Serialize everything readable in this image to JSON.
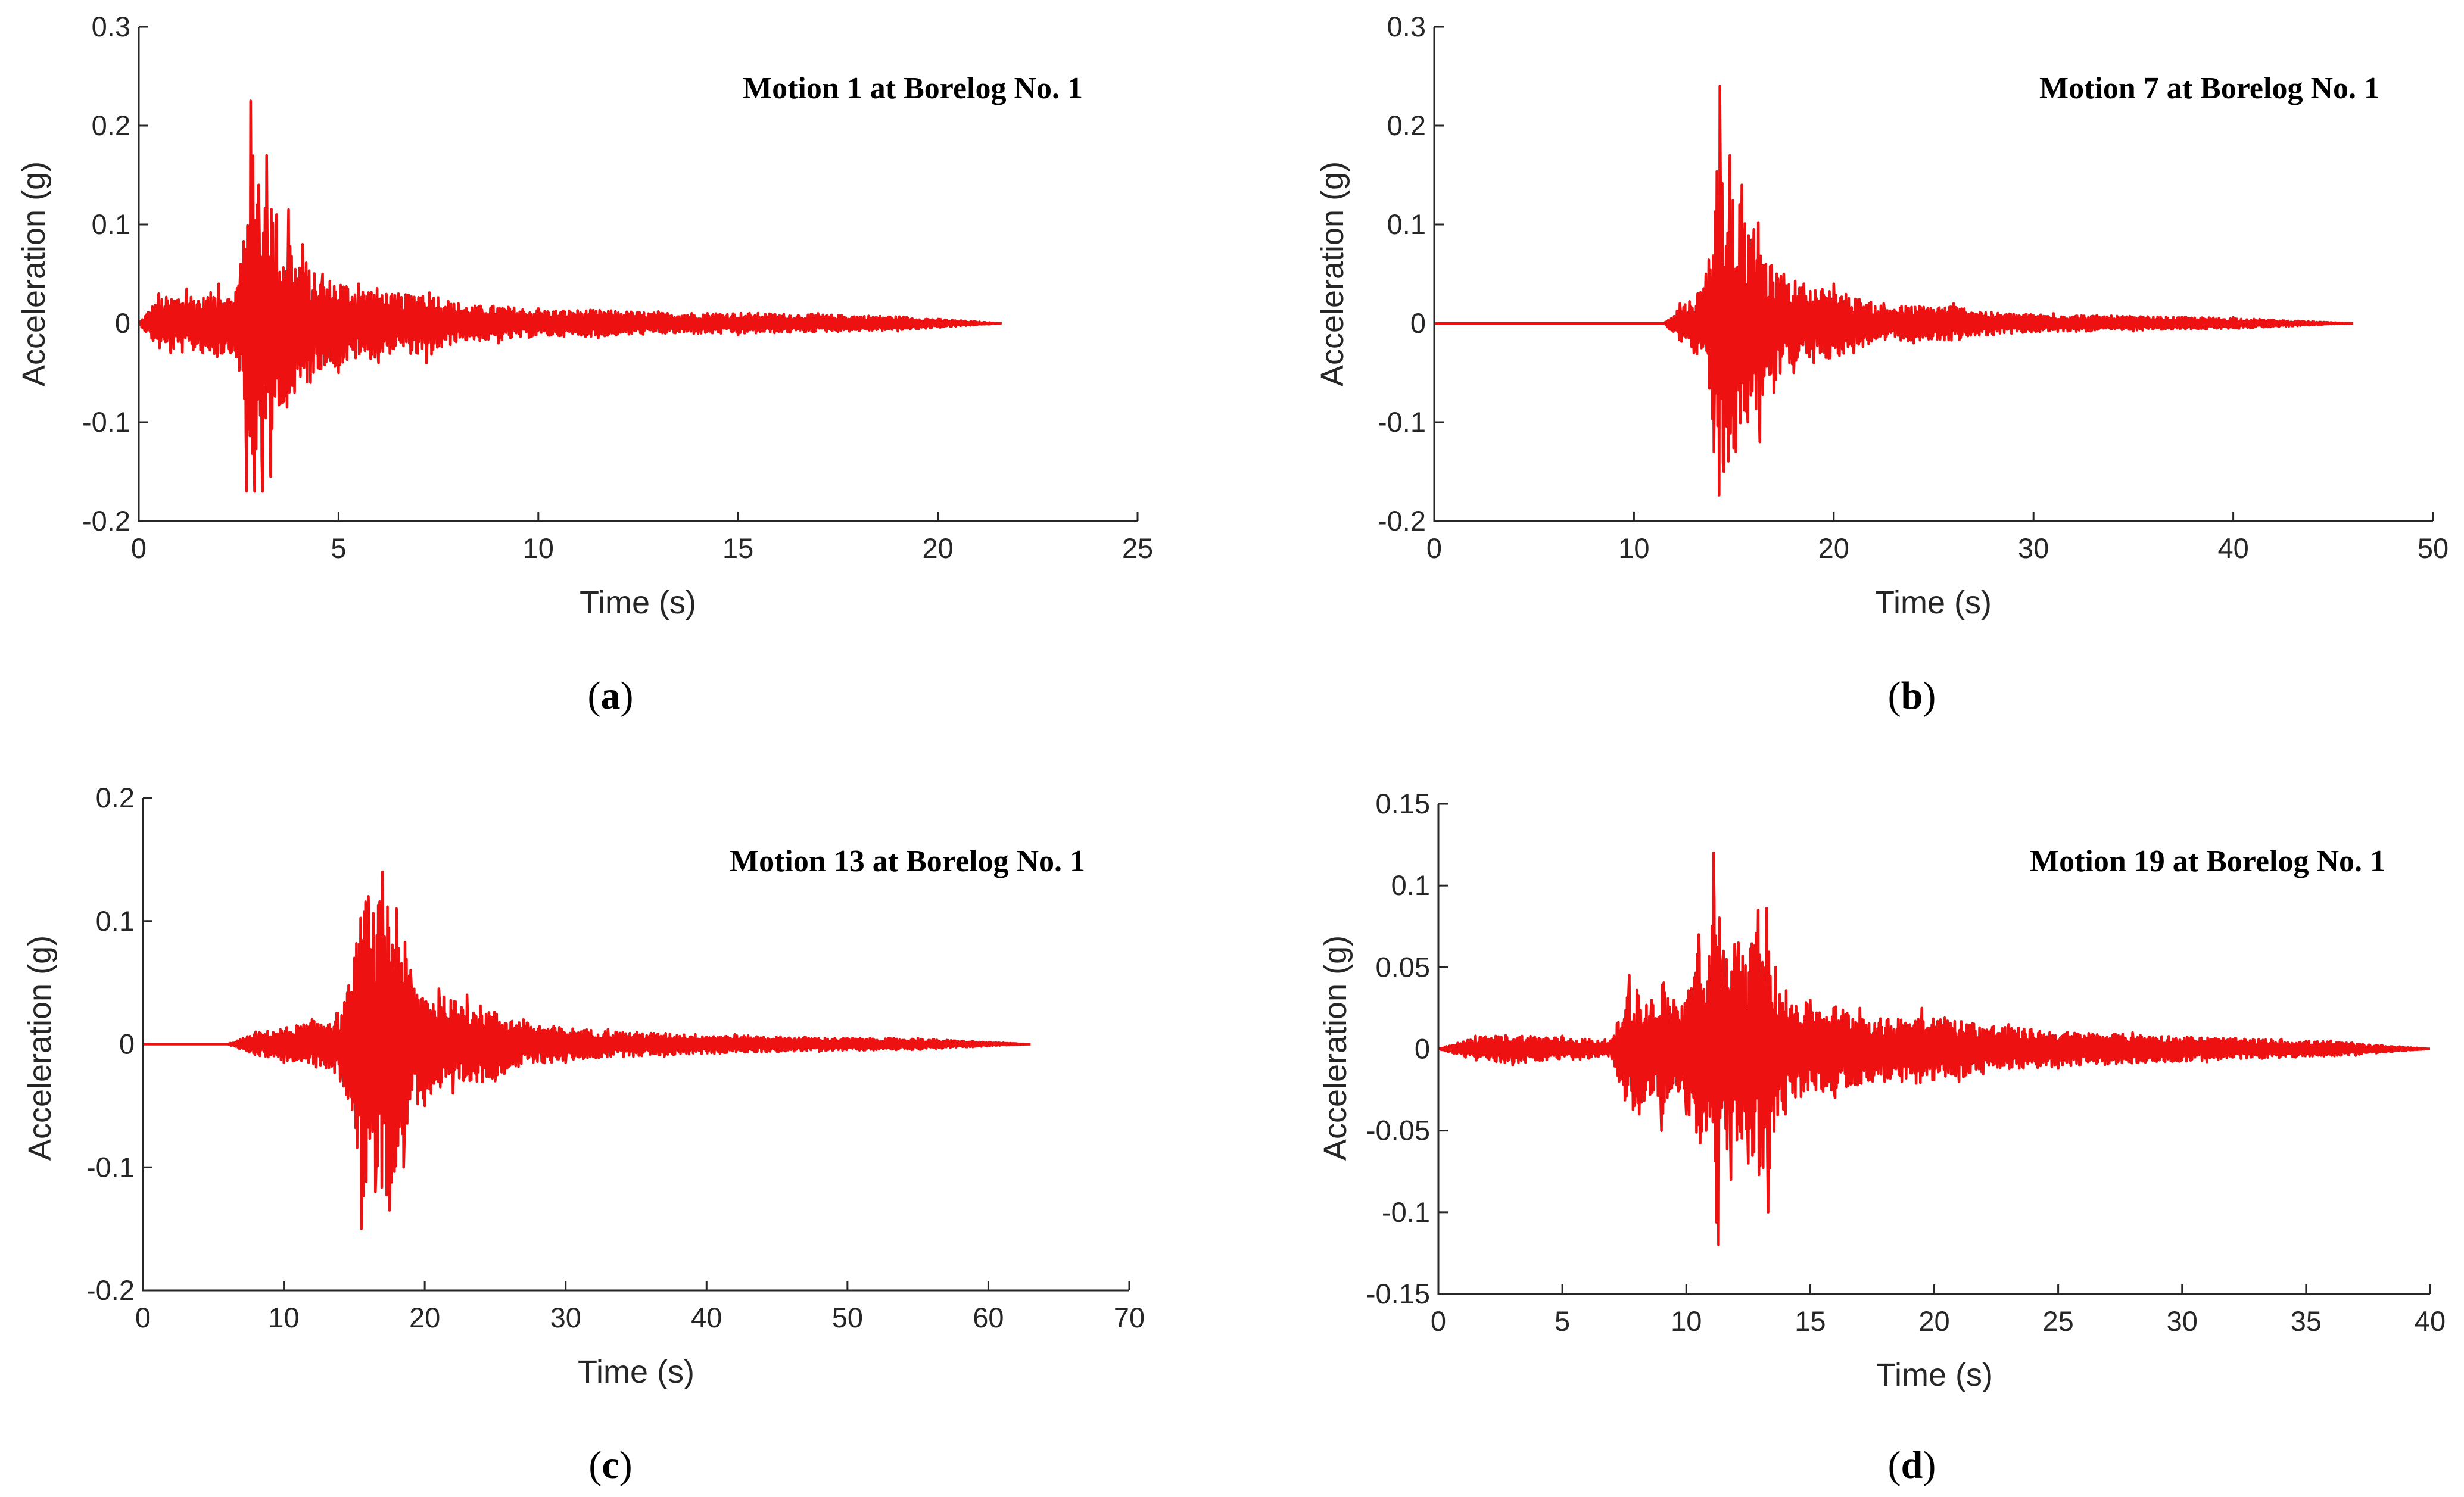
{
  "colors": {
    "series": "#ee1111",
    "axis": "#262626",
    "text": "#000000"
  },
  "chart_data": [
    {
      "id": "a",
      "type": "line",
      "title": "Motion 1 at Borelog No. 1",
      "xlabel": "Time (s)",
      "ylabel": "Acceleration (g)",
      "xlim": [
        0,
        25
      ],
      "ylim": [
        -0.2,
        0.3
      ],
      "xticks": [
        0,
        5,
        10,
        15,
        20,
        25
      ],
      "yticks": [
        -0.2,
        -0.1,
        0,
        0.1,
        0.2,
        0.3
      ],
      "xtick_labels": [
        "0",
        "5",
        "10",
        "15",
        "20",
        "25"
      ],
      "ytick_labels": [
        "-0.2",
        "-0.1",
        "0",
        "0.1",
        "0.2",
        "0.3"
      ],
      "caption": "a",
      "series": [
        {
          "name": "Motion 1",
          "record_start": 0,
          "record_end": 21.6,
          "x": [
            0,
            0.5,
            0.8,
            1.2,
            1.6,
            2.0,
            2.3,
            2.55,
            2.7,
            2.8,
            2.9,
            3.0,
            3.1,
            3.2,
            3.3,
            3.45,
            3.6,
            3.75,
            3.9,
            4.1,
            4.3,
            4.6,
            5.0,
            5.5,
            6.0,
            6.5,
            7.2,
            8.0,
            9.0,
            10.0,
            11.5,
            13.0,
            15.0,
            17.0,
            19.0,
            21.6
          ],
          "y": [
            0,
            0.03,
            -0.03,
            0.035,
            -0.03,
            0.04,
            -0.03,
            0.06,
            -0.17,
            0.225,
            -0.17,
            0.14,
            -0.17,
            0.17,
            -0.155,
            0.11,
            -0.08,
            0.115,
            -0.07,
            0.08,
            -0.06,
            0.05,
            -0.05,
            0.04,
            -0.04,
            0.03,
            -0.04,
            0.02,
            -0.02,
            0.015,
            -0.015,
            0.012,
            -0.012,
            0.01,
            -0.008,
            0
          ]
        }
      ]
    },
    {
      "id": "b",
      "type": "line",
      "title": "Motion 7 at Borelog No. 1",
      "xlabel": "Time (s)",
      "ylabel": "Acceleration (g)",
      "xlim": [
        0,
        50
      ],
      "ylim": [
        -0.2,
        0.3
      ],
      "xticks": [
        0,
        10,
        20,
        30,
        40,
        50
      ],
      "yticks": [
        -0.2,
        -0.1,
        0,
        0.1,
        0.2,
        0.3
      ],
      "xtick_labels": [
        "0",
        "10",
        "20",
        "30",
        "40",
        "50"
      ],
      "ytick_labels": [
        "-0.2",
        "-0.1",
        "0",
        "0.1",
        "0.2",
        "0.3"
      ],
      "caption": "b",
      "series": [
        {
          "name": "Motion 7",
          "record_start": 0,
          "record_end": 46,
          "x": [
            0,
            11.5,
            12.3,
            13.0,
            13.6,
            14.0,
            14.3,
            14.5,
            14.8,
            15.1,
            15.4,
            15.7,
            16.0,
            16.3,
            16.6,
            17.0,
            17.5,
            18.0,
            18.5,
            19.0,
            20.0,
            21.0,
            22.5,
            24.0,
            26.0,
            28.0,
            31.0,
            35.0,
            40.0,
            46.0
          ],
          "y": [
            0,
            0,
            0.02,
            -0.03,
            0.05,
            -0.13,
            0.24,
            -0.15,
            0.17,
            -0.13,
            0.14,
            -0.1,
            0.095,
            -0.12,
            0.06,
            -0.07,
            0.05,
            -0.05,
            0.04,
            -0.04,
            0.04,
            -0.03,
            0.02,
            -0.02,
            0.02,
            -0.012,
            0.01,
            -0.008,
            0.006,
            0
          ]
        }
      ]
    },
    {
      "id": "c",
      "type": "line",
      "title": "Motion 13 at Borelog No. 1",
      "xlabel": "Time (s)",
      "ylabel": "Acceleration (g)",
      "xlim": [
        0,
        70
      ],
      "ylim": [
        -0.2,
        0.2
      ],
      "xticks": [
        0,
        10,
        20,
        30,
        40,
        50,
        60,
        70
      ],
      "yticks": [
        -0.2,
        -0.1,
        0,
        0.1,
        0.2
      ],
      "xtick_labels": [
        "0",
        "10",
        "20",
        "30",
        "40",
        "50",
        "60",
        "70"
      ],
      "ytick_labels": [
        "-0.2",
        "-0.1",
        "0",
        "0.1",
        "0.2"
      ],
      "caption": "c",
      "series": [
        {
          "name": "Motion 13",
          "record_start": 0,
          "record_end": 63,
          "x": [
            0,
            6.0,
            8.0,
            10.0,
            12.0,
            14.0,
            15.0,
            15.5,
            16.0,
            16.5,
            17.0,
            17.5,
            18.0,
            18.5,
            19.0,
            20.0,
            21.0,
            22.0,
            23.0,
            25.0,
            27.0,
            30.0,
            33.0,
            37.0,
            42.0,
            48.0,
            55.0,
            63.0
          ],
          "y": [
            0,
            0,
            0.01,
            -0.015,
            0.02,
            -0.03,
            0.07,
            -0.15,
            0.12,
            -0.12,
            0.14,
            -0.135,
            0.11,
            -0.1,
            0.06,
            -0.05,
            0.045,
            -0.04,
            0.04,
            -0.03,
            0.02,
            -0.015,
            0.012,
            -0.01,
            0.008,
            -0.006,
            0.005,
            0
          ]
        }
      ]
    },
    {
      "id": "d",
      "type": "line",
      "title": "Motion 19 at Borelog No. 1",
      "xlabel": "Time (s)",
      "ylabel": "Acceleration (g)",
      "xlim": [
        0,
        40
      ],
      "ylim": [
        -0.15,
        0.15
      ],
      "xticks": [
        0,
        5,
        10,
        15,
        20,
        25,
        30,
        35,
        40
      ],
      "yticks": [
        -0.15,
        -0.1,
        -0.05,
        0,
        0.05,
        0.1,
        0.15
      ],
      "xtick_labels": [
        "0",
        "5",
        "10",
        "15",
        "20",
        "25",
        "30",
        "35",
        "40"
      ],
      "ytick_labels": [
        "-0.15",
        "-0.1",
        "-0.05",
        "0",
        "0.05",
        "0.1",
        "0.15"
      ],
      "caption": "d",
      "series": [
        {
          "name": "Motion 19",
          "record_start": 0,
          "record_end": 40,
          "x": [
            0,
            1.5,
            3.0,
            5.0,
            7.0,
            7.7,
            8.1,
            8.6,
            9.0,
            9.5,
            10.0,
            10.5,
            10.8,
            11.1,
            11.3,
            11.5,
            11.8,
            12.1,
            12.5,
            12.9,
            13.3,
            13.6,
            14.0,
            15.0,
            16.0,
            17.0,
            18.0,
            19.5,
            21.0,
            23.0,
            25.0,
            28.0,
            31.0,
            34.0,
            36.0,
            37.0,
            40.0
          ],
          "y": [
            0,
            0.008,
            -0.01,
            0.008,
            -0.006,
            0.045,
            -0.04,
            0.03,
            -0.05,
            0.03,
            -0.04,
            0.07,
            -0.05,
            0.12,
            -0.12,
            0.06,
            -0.08,
            0.065,
            -0.07,
            0.085,
            -0.1,
            0.05,
            -0.04,
            0.03,
            -0.03,
            0.025,
            -0.02,
            0.025,
            -0.02,
            0.015,
            -0.012,
            0.01,
            -0.008,
            0.006,
            0.005,
            -0.004,
            0
          ]
        }
      ]
    }
  ]
}
